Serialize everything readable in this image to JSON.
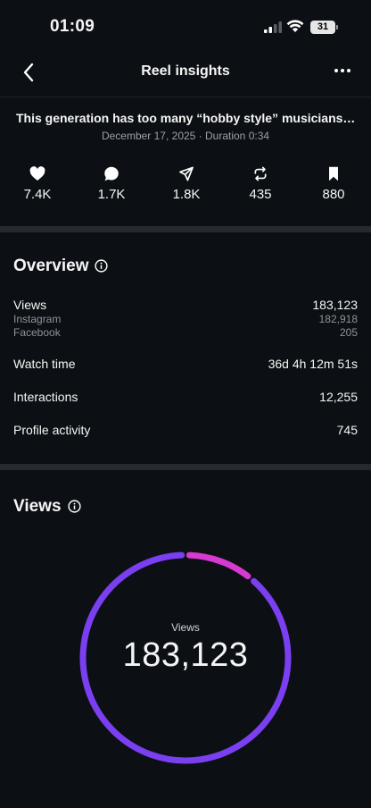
{
  "status_bar": {
    "time": "01:09",
    "battery": "31"
  },
  "nav": {
    "title": "Reel insights"
  },
  "post": {
    "title": "This generation has too many “hobby style” musicians w...",
    "meta": "December 17, 2025 · Duration 0:34"
  },
  "stats": [
    {
      "icon": "heart-icon",
      "value": "7.4K"
    },
    {
      "icon": "comment-icon",
      "value": "1.7K"
    },
    {
      "icon": "send-icon",
      "value": "1.8K"
    },
    {
      "icon": "repost-icon",
      "value": "435"
    },
    {
      "icon": "bookmark-icon",
      "value": "880"
    }
  ],
  "overview": {
    "title": "Overview",
    "views": {
      "label": "Views",
      "value": "183,123"
    },
    "instagram": {
      "label": "Instagram",
      "value": "182,918"
    },
    "facebook": {
      "label": "Facebook",
      "value": "205"
    },
    "watch_time": {
      "label": "Watch time",
      "value": "36d 4h 12m 51s"
    },
    "interactions": {
      "label": "Interactions",
      "value": "12,255"
    },
    "profile_activity": {
      "label": "Profile activity",
      "value": "745"
    }
  },
  "views_section": {
    "title": "Views",
    "ring_label": "Views",
    "ring_value": "183,123",
    "segments_fraction": [
      0.89,
      0.11
    ],
    "colors": {
      "primary": "#7b3ff2",
      "accent": "#d63ad0"
    }
  }
}
